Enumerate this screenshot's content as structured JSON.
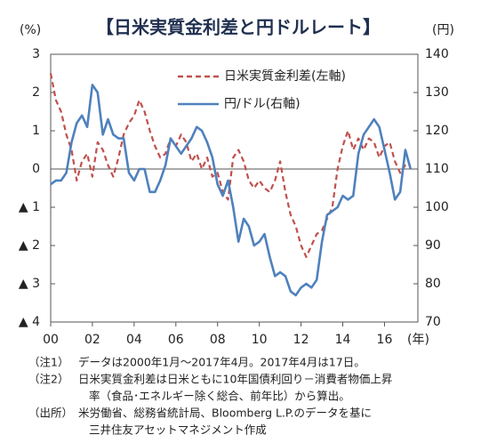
{
  "chart_data": {
    "type": "line",
    "title": "【日米実質金利差と円ドルレート】",
    "y_unit": "(%)",
    "y2_unit": "(円)",
    "x_unit": "(年)",
    "x": [
      2000,
      2000.25,
      2000.5,
      2000.75,
      2001,
      2001.25,
      2001.5,
      2001.75,
      2002,
      2002.25,
      2002.5,
      2002.75,
      2003,
      2003.25,
      2003.5,
      2003.75,
      2004,
      2004.25,
      2004.5,
      2004.75,
      2005,
      2005.25,
      2005.5,
      2005.75,
      2006,
      2006.25,
      2006.5,
      2006.75,
      2007,
      2007.25,
      2007.5,
      2007.75,
      2008,
      2008.25,
      2008.5,
      2008.75,
      2009,
      2009.25,
      2009.5,
      2009.75,
      2010,
      2010.25,
      2010.5,
      2010.75,
      2011,
      2011.25,
      2011.5,
      2011.75,
      2012,
      2012.25,
      2012.5,
      2012.75,
      2013,
      2013.25,
      2013.5,
      2013.75,
      2014,
      2014.25,
      2014.5,
      2014.75,
      2015,
      2015.25,
      2015.5,
      2015.75,
      2016,
      2016.25,
      2016.5,
      2016.75,
      2017,
      2017.25
    ],
    "series": [
      {
        "name": "日米実質金利差(左軸)",
        "color": "#c0504d",
        "dashed": true,
        "values": [
          2.5,
          1.8,
          1.5,
          0.9,
          0.5,
          -0.3,
          0.2,
          0.4,
          -0.2,
          0.7,
          0.5,
          0.1,
          -0.2,
          0.3,
          0.9,
          1.2,
          1.4,
          1.8,
          1.5,
          1.0,
          0.6,
          0.3,
          0.4,
          0.8,
          0.6,
          0.9,
          0.7,
          0.2,
          0.4,
          0.0,
          0.3,
          -0.2,
          -0.1,
          -0.6,
          -0.8,
          0.3,
          0.5,
          0.2,
          -0.3,
          -0.5,
          -0.3,
          -0.5,
          -0.6,
          -0.3,
          0.2,
          -0.6,
          -1.2,
          -1.5,
          -2.0,
          -2.3,
          -2.0,
          -1.7,
          -1.6,
          -1.3,
          -1.0,
          0.0,
          0.6,
          1.0,
          0.5,
          0.8,
          0.5,
          0.8,
          0.7,
          0.3,
          0.6,
          0.7,
          0.2,
          -0.1,
          0.1,
          0.1
        ]
      },
      {
        "name": "円/ドル(右軸)",
        "color": "#4f81bd",
        "dashed": false,
        "axis": "y2",
        "values": [
          106,
          107,
          107,
          109,
          117,
          122,
          124,
          121,
          132,
          130,
          119,
          123,
          119,
          118,
          118,
          109,
          107,
          110,
          110,
          104,
          104,
          107,
          111,
          118,
          116,
          114,
          116,
          118,
          121,
          120,
          117,
          113,
          106,
          103,
          107,
          100,
          91,
          97,
          95,
          90,
          91,
          93,
          87,
          82,
          83,
          82,
          78,
          77,
          79,
          80,
          79,
          81,
          91,
          98,
          99,
          100,
          103,
          102,
          103,
          114,
          119,
          121,
          123,
          121,
          115,
          109,
          102,
          104,
          115,
          110
        ]
      }
    ],
    "xlim": [
      2000,
      2017.6
    ],
    "xticks": [
      {
        "value": 2000,
        "label": "00"
      },
      {
        "value": 2002,
        "label": "02"
      },
      {
        "value": 2004,
        "label": "04"
      },
      {
        "value": 2006,
        "label": "06"
      },
      {
        "value": 2008,
        "label": "08"
      },
      {
        "value": 2010,
        "label": "10"
      },
      {
        "value": 2012,
        "label": "12"
      },
      {
        "value": 2014,
        "label": "14"
      },
      {
        "value": 2016,
        "label": "16"
      }
    ],
    "ylim": [
      -4,
      3
    ],
    "yticks": [
      3,
      2,
      1,
      0,
      {
        "value": -1,
        "label": "▲ 1"
      },
      {
        "value": -2,
        "label": "▲ 2"
      },
      {
        "value": -3,
        "label": "▲ 3"
      },
      {
        "value": -4,
        "label": "▲ 4"
      }
    ],
    "y2lim": [
      70,
      140
    ],
    "y2ticks": [
      140,
      130,
      120,
      110,
      100,
      90,
      80,
      70
    ],
    "legend": "upper right",
    "notes": [
      {
        "label": "（注1）",
        "lines": [
          "データは2000年1月～2017年4月。2017年4月は17日。"
        ]
      },
      {
        "label": "（注2）",
        "lines": [
          "日米実質金利差は日米ともに10年国債利回り－消費者物価上昇",
          "率（食品･エネルギー除く総合、前年比）から算出。"
        ]
      },
      {
        "label": "（出所）",
        "lines": [
          "米労働省、総務省統計局、Bloomberg L.P.のデータを基に",
          "三井住友アセットマネジメント作成"
        ]
      }
    ]
  }
}
